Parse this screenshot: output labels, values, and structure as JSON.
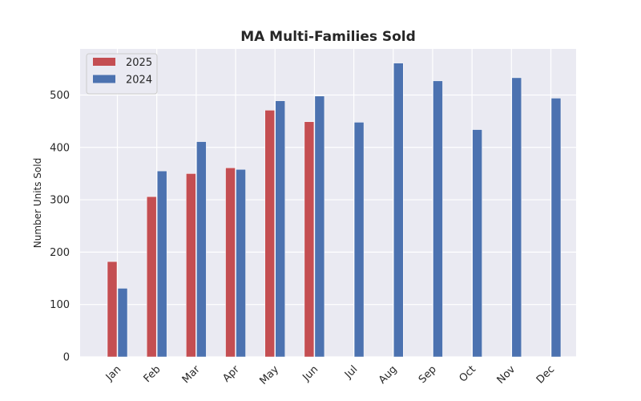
{
  "chart_data": {
    "type": "bar",
    "title": "MA Multi-Families Sold",
    "xlabel": "",
    "ylabel": "Number Units Sold",
    "categories": [
      "Jan",
      "Feb",
      "Mar",
      "Apr",
      "May",
      "Jun",
      "Jul",
      "Aug",
      "Sep",
      "Oct",
      "Nov",
      "Dec"
    ],
    "series": [
      {
        "name": "2025",
        "color": "#c44e52",
        "values": [
          182,
          306,
          350,
          361,
          471,
          449,
          null,
          null,
          null,
          null,
          null,
          null
        ]
      },
      {
        "name": "2024",
        "color": "#4c72b0",
        "values": [
          131,
          355,
          411,
          358,
          489,
          498,
          448,
          561,
          527,
          434,
          533,
          494
        ]
      }
    ],
    "ylim": [
      0,
      588
    ],
    "yticks": [
      0,
      100,
      200,
      300,
      400,
      500
    ],
    "grid": true,
    "legend_position": "top-left",
    "background_color": "#eaeaf2",
    "grid_color": "#ffffff"
  }
}
